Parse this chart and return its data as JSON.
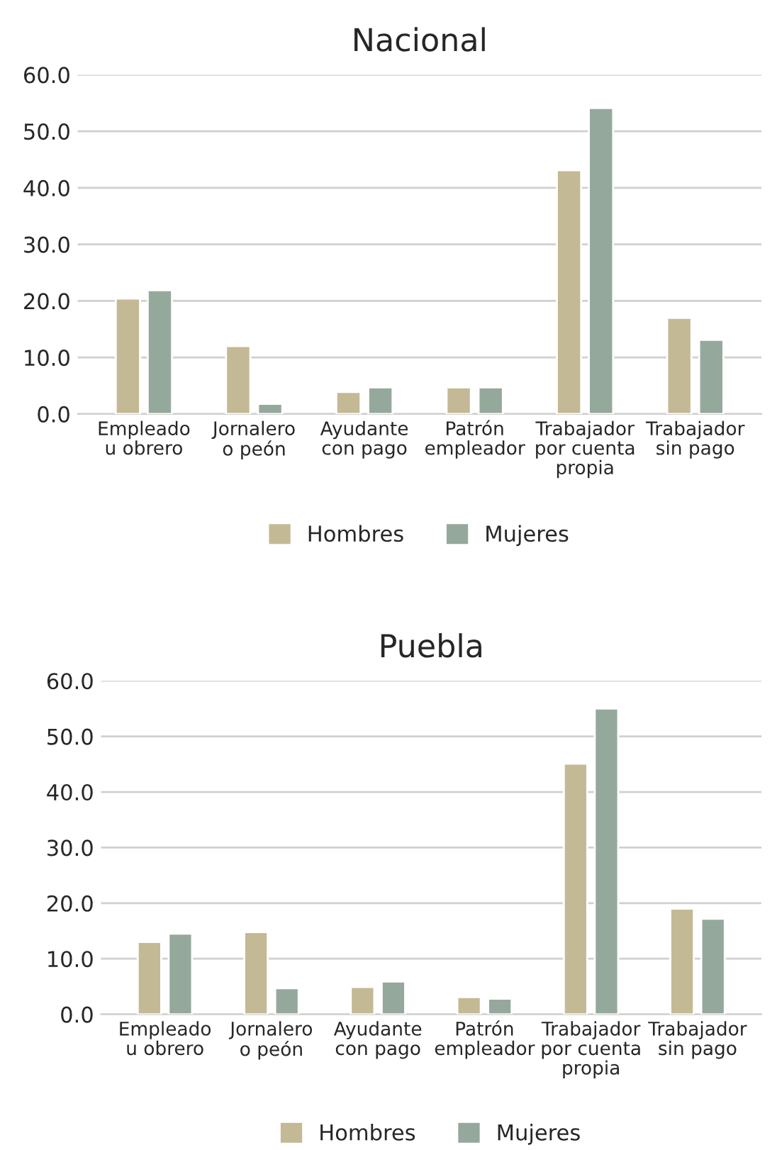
{
  "chart_data": [
    {
      "type": "bar",
      "title": "Nacional",
      "categories": [
        "Empleado\nu obrero",
        "Jornalero\no peón",
        "Ayudante\ncon pago",
        "Patrón\nempleador",
        "Trabajador\npor cuenta\npropia",
        "Trabajador\nsin pago"
      ],
      "series": [
        {
          "name": "Hombres",
          "color": "#c4b995",
          "values": [
            20.4,
            12.0,
            3.9,
            4.7,
            43.1,
            17.0
          ]
        },
        {
          "name": "Mujeres",
          "color": "#95a89c",
          "values": [
            21.9,
            1.8,
            4.7,
            4.7,
            54.1,
            13.1
          ]
        }
      ],
      "ylim": [
        0,
        60
      ],
      "yticks": [
        {
          "value": 0,
          "label": "0.0"
        },
        {
          "value": 10,
          "label": "10.0"
        },
        {
          "value": 20,
          "label": "20.0"
        },
        {
          "value": 30,
          "label": "30.0"
        },
        {
          "value": 40,
          "label": "40.0"
        },
        {
          "value": 50,
          "label": "50.0"
        },
        {
          "value": 60,
          "label": "60.0"
        }
      ],
      "grid": "y",
      "legend": "bottom"
    },
    {
      "type": "bar",
      "title": "Puebla",
      "categories": [
        "Empleado\nu obrero",
        "Jornalero\no peón",
        "Ayudante\ncon pago",
        "Patrón\nempleador",
        "Trabajador\npor cuenta\npropia",
        "Trabajador\nsin pago"
      ],
      "series": [
        {
          "name": "Hombres",
          "color": "#c4b995",
          "values": [
            13.0,
            14.8,
            4.9,
            3.1,
            45.1,
            19.0
          ]
        },
        {
          "name": "Mujeres",
          "color": "#95a89c",
          "values": [
            14.5,
            4.7,
            5.9,
            2.8,
            55.0,
            17.2
          ]
        }
      ],
      "ylim": [
        0,
        60
      ],
      "yticks": [
        {
          "value": 0,
          "label": "0.0"
        },
        {
          "value": 10,
          "label": "10.0"
        },
        {
          "value": 20,
          "label": "20.0"
        },
        {
          "value": 30,
          "label": "30.0"
        },
        {
          "value": 40,
          "label": "40.0"
        },
        {
          "value": 50,
          "label": "50.0"
        },
        {
          "value": 60,
          "label": "60.0"
        }
      ],
      "grid": "y",
      "legend": "bottom"
    }
  ]
}
